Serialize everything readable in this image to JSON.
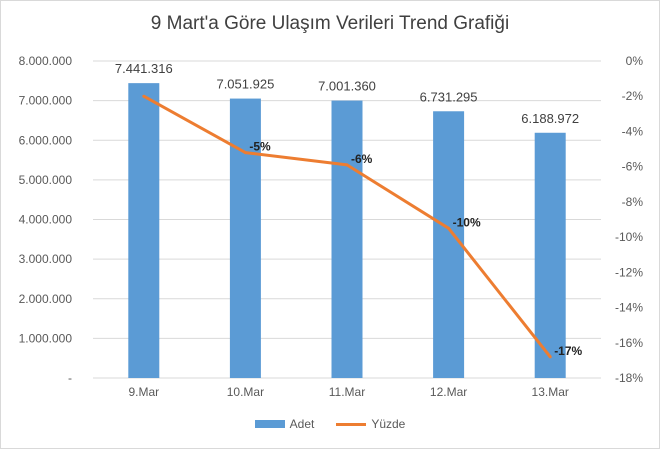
{
  "chart_data": {
    "type": "bar",
    "title": "9 Mart'a Göre Ulaşım Verileri Trend Grafiği",
    "categories": [
      "9.Mar",
      "10.Mar",
      "11.Mar",
      "12.Mar",
      "13.Mar"
    ],
    "series": [
      {
        "name": "Adet",
        "type": "bar",
        "axis": "left",
        "values": [
          7441316,
          7051925,
          7001360,
          6731295,
          6188972
        ],
        "labels": [
          "7.441.316",
          "7.051.925",
          "7.001.360",
          "6.731.295",
          "6.188.972"
        ],
        "color": "#5b9bd5"
      },
      {
        "name": "Yüzde",
        "type": "line",
        "axis": "right",
        "values": [
          -2,
          -5.2,
          -5.9,
          -9.5,
          -16.8
        ],
        "labels": [
          "",
          "-5%",
          "-6%",
          "-10%",
          "-17%"
        ],
        "color": "#ed7d31"
      }
    ],
    "y_left": {
      "ylim": [
        0,
        8000000
      ],
      "ticks": [
        "-",
        "1.000.000",
        "2.000.000",
        "3.000.000",
        "4.000.000",
        "5.000.000",
        "6.000.000",
        "7.000.000",
        "8.000.000"
      ]
    },
    "y_right": {
      "ylim": [
        -18,
        0
      ],
      "ticks": [
        "0%",
        "-2%",
        "-4%",
        "-6%",
        "-8%",
        "-10%",
        "-12%",
        "-14%",
        "-16%",
        "-18%"
      ]
    },
    "grid": true,
    "legend": "bottom"
  }
}
